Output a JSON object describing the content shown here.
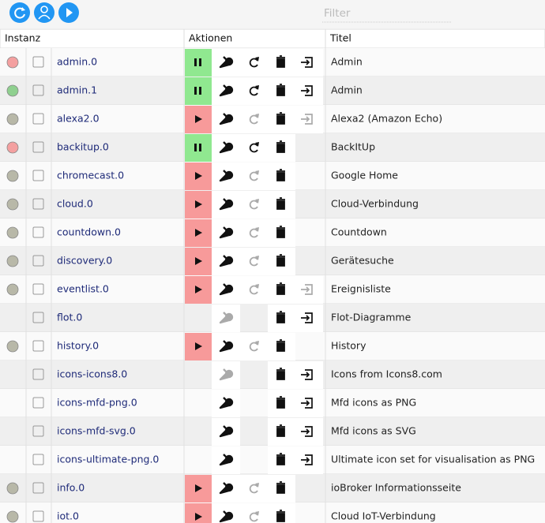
{
  "toolbar": {
    "filter": "Filter"
  },
  "table": {
    "headers": [
      "Instanz",
      "Aktionen",
      "Titel"
    ],
    "rows": [
      {
        "instance": "admin.0",
        "title": "Admin",
        "status": "red",
        "run": "pause",
        "wrench": true,
        "reload": true,
        "link": true
      },
      {
        "instance": "admin.1",
        "title": "Admin",
        "status": "green",
        "run": "pause",
        "wrench": true,
        "reload": true,
        "link": true
      },
      {
        "instance": "alexa2.0",
        "title": "Alexa2 (Amazon Echo)",
        "status": "grey",
        "run": "play",
        "wrench": true,
        "reload": false,
        "link": false
      },
      {
        "instance": "backitup.0",
        "title": "BackItUp",
        "status": "red",
        "run": "pause",
        "wrench": true,
        "reload": true
      },
      {
        "instance": "chromecast.0",
        "title": "Google Home",
        "status": "grey",
        "run": "play",
        "wrench": true,
        "reload": false
      },
      {
        "instance": "cloud.0",
        "title": "Cloud-Verbindung",
        "status": "grey",
        "run": "play",
        "wrench": true,
        "reload": false
      },
      {
        "instance": "countdown.0",
        "title": "Countdown",
        "status": "grey",
        "run": "play",
        "wrench": true,
        "reload": false
      },
      {
        "instance": "discovery.0",
        "title": "Gerätesuche",
        "status": "grey",
        "run": "play",
        "wrench": true,
        "reload": false
      },
      {
        "instance": "eventlist.0",
        "title": "Ereignisliste",
        "status": "grey",
        "run": "play",
        "wrench": true,
        "reload": false,
        "link": false
      },
      {
        "instance": "flot.0",
        "title": "Flot-Diagramme",
        "wrench": false,
        "link": true
      },
      {
        "instance": "history.0",
        "title": "History",
        "status": "grey",
        "run": "play",
        "wrench": true,
        "reload": false
      },
      {
        "instance": "icons-icons8.0",
        "title": "Icons from Icons8.com",
        "wrench": false,
        "link": true
      },
      {
        "instance": "icons-mfd-png.0",
        "title": "Mfd icons as PNG",
        "wrench": true,
        "link": true
      },
      {
        "instance": "icons-mfd-svg.0",
        "title": "Mfd icons as SVG",
        "wrench": true,
        "link": true
      },
      {
        "instance": "icons-ultimate-png.0",
        "title": "Ultimate icon set for visualisation as PNG",
        "wrench": true,
        "link": true
      },
      {
        "instance": "info.0",
        "title": "ioBroker Informationsseite",
        "status": "grey",
        "run": "play",
        "wrench": true,
        "reload": false
      },
      {
        "instance": "iot.0",
        "title": "Cloud IoT-Verbindung",
        "status": "grey",
        "run": "play",
        "wrench": true,
        "reload": false
      }
    ]
  }
}
